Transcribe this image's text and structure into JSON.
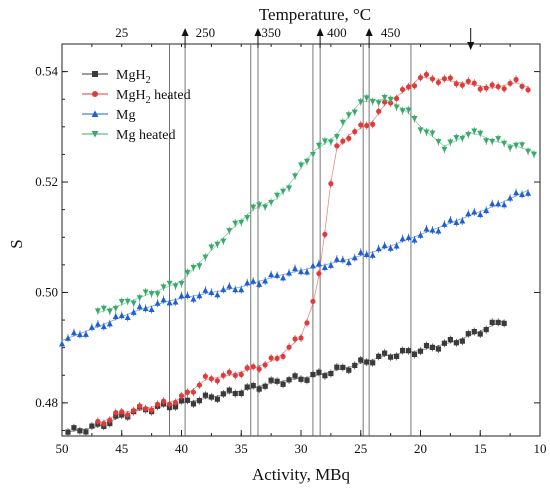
{
  "chart_data": {
    "type": "scatter",
    "xlabel": "Activity, MBq",
    "ylabel": "S",
    "top_axis_label": "Temperature, °C",
    "xlim": [
      50,
      10
    ],
    "ylim": [
      0.474,
      0.545
    ],
    "x_ticks": [
      50,
      45,
      40,
      35,
      30,
      25,
      20,
      15,
      10
    ],
    "x_tick_labels": [
      "50",
      "45",
      "40",
      "35",
      "30",
      "25",
      "20",
      "15",
      "10"
    ],
    "y_ticks": [
      0.48,
      0.5,
      0.52,
      0.54
    ],
    "y_tick_labels": [
      "0.48",
      "0.50",
      "0.52",
      "0.54"
    ],
    "top_ticks": [
      {
        "label": "25",
        "x": 45.0
      },
      {
        "label": "250",
        "x": 38.0
      },
      {
        "label": "350",
        "x": 32.5
      },
      {
        "label": "400",
        "x": 27.0
      },
      {
        "label": "450",
        "x": 22.5
      }
    ],
    "top_arrows_x": [
      39.7,
      33.6,
      28.4,
      24.3,
      15.8
    ],
    "vertical_lines_x": [
      41.0,
      39.7,
      34.2,
      33.6,
      29.0,
      28.4,
      24.8,
      24.3,
      20.8
    ],
    "legend": {
      "position": "top-left",
      "entries": [
        {
          "label_main": "MgH",
          "label_sub": "2",
          "label_tail": "",
          "series": 0
        },
        {
          "label_main": "MgH",
          "label_sub": "2",
          "label_tail": " heated",
          "series": 1
        },
        {
          "label_main": "Mg",
          "label_sub": "",
          "label_tail": "",
          "series": 2
        },
        {
          "label_main": "Mg heated",
          "label_sub": "",
          "label_tail": "",
          "series": 3
        }
      ]
    },
    "series": [
      {
        "color": "#3a3a3a",
        "marker": "square",
        "x": [
          49.5,
          47,
          44,
          41,
          38,
          35,
          32,
          29,
          26,
          23,
          20,
          17,
          15,
          14,
          13
        ],
        "y": [
          0.4747,
          0.4757,
          0.4785,
          0.4795,
          0.4808,
          0.4822,
          0.4838,
          0.4848,
          0.4865,
          0.4885,
          0.4895,
          0.4912,
          0.493,
          0.494,
          0.495
        ]
      },
      {
        "color": "#e03b3b",
        "marker": "circle",
        "x": [
          47,
          45,
          42,
          40,
          38,
          36,
          34,
          32,
          30,
          29,
          28.5,
          28,
          27.5,
          27,
          26,
          24,
          23,
          21,
          20,
          18,
          16,
          14,
          12,
          11
        ],
        "y": [
          0.4762,
          0.4782,
          0.4795,
          0.4808,
          0.4842,
          0.485,
          0.4862,
          0.488,
          0.492,
          0.498,
          0.503,
          0.511,
          0.52,
          0.526,
          0.5285,
          0.531,
          0.534,
          0.537,
          0.539,
          0.5385,
          0.5378,
          0.537,
          0.538,
          0.5372
        ]
      },
      {
        "color": "#1f5fd1",
        "marker": "triangle-up",
        "x": [
          50,
          47,
          44,
          41,
          38,
          35,
          32,
          29,
          26,
          23,
          20,
          17,
          14,
          12,
          11
        ],
        "y": [
          0.4913,
          0.4938,
          0.4965,
          0.4985,
          0.4998,
          0.501,
          0.503,
          0.5045,
          0.506,
          0.508,
          0.5105,
          0.513,
          0.5155,
          0.5175,
          0.5185
        ]
      },
      {
        "color": "#3aaa6a",
        "marker": "triangle-down",
        "x": [
          47,
          45,
          42,
          40,
          38,
          36,
          34,
          32,
          31,
          30,
          29,
          27,
          26,
          25,
          23,
          22,
          21,
          20,
          18,
          17,
          16,
          15,
          14,
          12,
          10.5
        ],
        "y": [
          0.4963,
          0.4978,
          0.5003,
          0.502,
          0.5065,
          0.511,
          0.515,
          0.517,
          0.5195,
          0.5225,
          0.5255,
          0.5285,
          0.532,
          0.5345,
          0.535,
          0.534,
          0.5325,
          0.53,
          0.5265,
          0.5275,
          0.529,
          0.5285,
          0.5275,
          0.5265,
          0.5255
        ]
      }
    ]
  }
}
